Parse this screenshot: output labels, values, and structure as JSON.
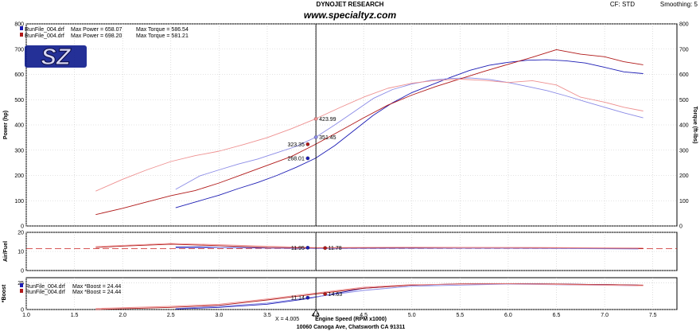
{
  "header": {
    "title": "DYNOJET RESEARCH",
    "subtitle": "www.specialtyz.com",
    "cf": "CF: STD",
    "smoothing": "Smoothing: 5"
  },
  "logo_text": "SZ",
  "footer": {
    "cursor": "X = 4.005",
    "xlabel": "Engine Speed (RPM x1000)",
    "address": "10060 Canoga Ave, Chatsworth CA 91311"
  },
  "colors": {
    "run1_dark": "#1c1cb4",
    "run1_light": "#8a8ae6",
    "run2_dark": "#b01818",
    "run2_light": "#ee9090",
    "cursor": "#000000",
    "grid": "#c8c8c8"
  },
  "chart_data": [
    {
      "type": "line",
      "panel": "power",
      "ylabel": "Power (hp)",
      "ylabel_right": "Torque (ft-lbs)",
      "xlim": [
        1.0,
        7.75
      ],
      "ylim": [
        0,
        800
      ],
      "xticks": [
        "1.0",
        "1.5",
        "2.0",
        "2.5",
        "3.0",
        "3.5",
        "4.0",
        "4.5",
        "5.0",
        "5.5",
        "6.0",
        "6.5",
        "7.0",
        "7.5"
      ],
      "yticks": [
        "0",
        "100",
        "200",
        "300",
        "400",
        "500",
        "600",
        "700",
        "800"
      ],
      "legend": [
        {
          "file": "RunFile_004.drf",
          "power": "Max Power = 658.07",
          "torque": "Max Torque = 586.54"
        },
        {
          "file": "RunFile_004.drf",
          "power": "Max Power = 698.20",
          "torque": "Max Torque = 581.21"
        }
      ],
      "series": [
        {
          "key": "run1_power",
          "color": "#1c1cb4",
          "x": [
            2.55,
            2.8,
            3.0,
            3.2,
            3.4,
            3.6,
            3.8,
            4.0,
            4.2,
            4.4,
            4.6,
            4.8,
            5.0,
            5.2,
            5.4,
            5.6,
            5.8,
            6.0,
            6.2,
            6.4,
            6.6,
            6.8,
            7.0,
            7.2,
            7.4
          ],
          "y": [
            72,
            100,
            122,
            148,
            172,
            200,
            232,
            268,
            318,
            378,
            438,
            488,
            528,
            558,
            588,
            616,
            636,
            648,
            656,
            658,
            654,
            645,
            628,
            610,
            603
          ]
        },
        {
          "key": "run1_torque",
          "color": "#8a8ae6",
          "x": [
            2.55,
            2.8,
            3.0,
            3.2,
            3.4,
            3.6,
            3.8,
            4.0,
            4.2,
            4.4,
            4.6,
            4.8,
            5.0,
            5.2,
            5.4,
            5.6,
            5.8,
            6.0,
            6.2,
            6.4,
            6.6,
            6.8,
            7.0,
            7.2,
            7.4
          ],
          "y": [
            145,
            198,
            222,
            245,
            265,
            290,
            315,
            351,
            400,
            452,
            505,
            540,
            562,
            577,
            584,
            586,
            580,
            568,
            552,
            536,
            515,
            492,
            470,
            448,
            428
          ]
        },
        {
          "key": "run2_power",
          "color": "#b01818",
          "x": [
            1.72,
            2.0,
            2.25,
            2.5,
            2.75,
            3.0,
            3.25,
            3.5,
            3.75,
            4.0,
            4.25,
            4.5,
            4.75,
            5.0,
            5.25,
            5.5,
            5.75,
            6.0,
            6.25,
            6.5,
            6.75,
            7.0,
            7.2,
            7.4
          ],
          "y": [
            45,
            70,
            95,
            120,
            140,
            170,
            205,
            240,
            275,
            323,
            375,
            428,
            478,
            518,
            552,
            582,
            612,
            640,
            668,
            698,
            680,
            670,
            650,
            638
          ]
        },
        {
          "key": "run2_torque",
          "color": "#ee9090",
          "x": [
            1.72,
            2.0,
            2.25,
            2.5,
            2.75,
            3.0,
            3.25,
            3.5,
            3.75,
            4.0,
            4.25,
            4.5,
            4.75,
            5.0,
            5.25,
            5.5,
            5.75,
            6.0,
            6.25,
            6.5,
            6.75,
            7.0,
            7.2,
            7.4
          ],
          "y": [
            138,
            185,
            222,
            255,
            278,
            296,
            322,
            350,
            385,
            424,
            468,
            510,
            545,
            565,
            576,
            581,
            576,
            568,
            575,
            558,
            510,
            490,
            470,
            455
          ]
        }
      ],
      "markers": [
        {
          "x": 4.005,
          "y": 423.99,
          "label": "423.99",
          "color": "#ee9090",
          "side": "right"
        },
        {
          "x": 4.005,
          "y": 351.45,
          "label": "351.45",
          "color": "#8a8ae6",
          "side": "right"
        },
        {
          "x": 3.92,
          "y": 323.35,
          "label": "323.35",
          "color": "#b01818",
          "side": "left"
        },
        {
          "x": 3.92,
          "y": 268.01,
          "label": "268.01",
          "color": "#1c1cb4",
          "side": "left"
        }
      ]
    },
    {
      "type": "line",
      "panel": "afr",
      "ylabel": "Air/Fuel",
      "xlim": [
        1.0,
        7.75
      ],
      "ylim": [
        0,
        20
      ],
      "yticks": [
        "0",
        "10",
        "20"
      ],
      "reference_line": 11.5,
      "series": [
        {
          "key": "run1_afr",
          "color": "#1c1cb4",
          "x": [
            2.55,
            2.8,
            3.0,
            3.5,
            4.0,
            4.5,
            5.0,
            5.5,
            6.0,
            6.5,
            7.0,
            7.35
          ],
          "y": [
            12.3,
            12.4,
            12.1,
            11.9,
            11.7,
            11.8,
            11.9,
            12.1,
            12.0,
            11.9,
            11.6,
            11.5
          ]
        },
        {
          "key": "run2_afr",
          "color": "#b01818",
          "x": [
            1.72,
            2.0,
            2.5,
            3.0,
            3.5,
            4.0,
            4.5,
            5.0,
            5.5,
            6.0,
            6.5,
            7.0,
            7.4
          ],
          "y": [
            12.0,
            12.8,
            13.8,
            13.0,
            12.1,
            11.8,
            11.9,
            12.0,
            12.0,
            11.9,
            11.8,
            11.6,
            11.4
          ]
        },
        {
          "key": "run1_afr_light",
          "color": "#8a8ae6",
          "x": [
            2.55,
            3.0,
            3.5,
            4.0,
            5.0,
            6.0,
            7.35
          ],
          "y": [
            11.8,
            12.0,
            11.7,
            11.5,
            11.6,
            11.6,
            11.3
          ]
        },
        {
          "key": "run2_afr_light",
          "color": "#ee9090",
          "x": [
            1.72,
            2.5,
            3.0,
            4.0,
            5.0,
            6.0,
            7.4
          ],
          "y": [
            12.6,
            14.2,
            13.5,
            12.0,
            12.2,
            12.1,
            11.8
          ]
        }
      ],
      "markers": [
        {
          "x": 3.92,
          "y": 11.95,
          "label": "11.95",
          "color": "#1c1cb4",
          "side": "left"
        },
        {
          "x": 4.1,
          "y": 11.78,
          "label": "11.78",
          "color": "#b01818",
          "side": "right"
        }
      ]
    },
    {
      "type": "line",
      "panel": "boost",
      "ylabel": "*Boost",
      "xlim": [
        1.0,
        7.75
      ],
      "ylim": [
        0,
        30
      ],
      "yticks": [
        "0",
        "25"
      ],
      "legend": [
        {
          "file": "RunFile_004.drf",
          "value": "Max *Boost = 24.44"
        },
        {
          "file": "RunFile_004.drf",
          "value": "Max *Boost = 24.44"
        }
      ],
      "series": [
        {
          "key": "run1_boost",
          "color": "#1c1cb4",
          "x": [
            2.55,
            3.0,
            3.5,
            3.9,
            4.2,
            4.5,
            5.0,
            5.5,
            6.0,
            6.5,
            7.0,
            7.35
          ],
          "y": [
            0.5,
            2,
            5,
            10,
            15,
            20,
            23,
            24,
            24.4,
            24,
            23.5,
            23
          ]
        },
        {
          "key": "run2_boost",
          "color": "#b01818",
          "x": [
            1.72,
            2.5,
            3.0,
            3.5,
            4.0,
            4.5,
            5.0,
            5.5,
            6.0,
            6.5,
            7.0,
            7.4
          ],
          "y": [
            0,
            2,
            4,
            9,
            14.6,
            20,
            23,
            24.2,
            24.4,
            24,
            23.5,
            23
          ]
        },
        {
          "key": "run1_boost_light",
          "color": "#8a8ae6",
          "x": [
            2.55,
            3.0,
            3.5,
            4.0,
            4.5,
            5.0,
            6.0,
            7.35
          ],
          "y": [
            1,
            3,
            6,
            12,
            18,
            22,
            24,
            22.5
          ]
        },
        {
          "key": "run2_boost_light",
          "color": "#ee9090",
          "x": [
            1.72,
            2.5,
            3.0,
            3.5,
            4.0,
            4.5,
            5.0,
            6.0,
            7.4
          ],
          "y": [
            1,
            3,
            5,
            10,
            15.5,
            21,
            23.5,
            24.2,
            22.5
          ]
        }
      ],
      "markers": [
        {
          "x": 3.92,
          "y": 11.14,
          "label": "11.14",
          "color": "#1c1cb4",
          "side": "left"
        },
        {
          "x": 4.1,
          "y": 14.63,
          "label": "14.63",
          "color": "#b01818",
          "side": "right"
        }
      ]
    }
  ]
}
